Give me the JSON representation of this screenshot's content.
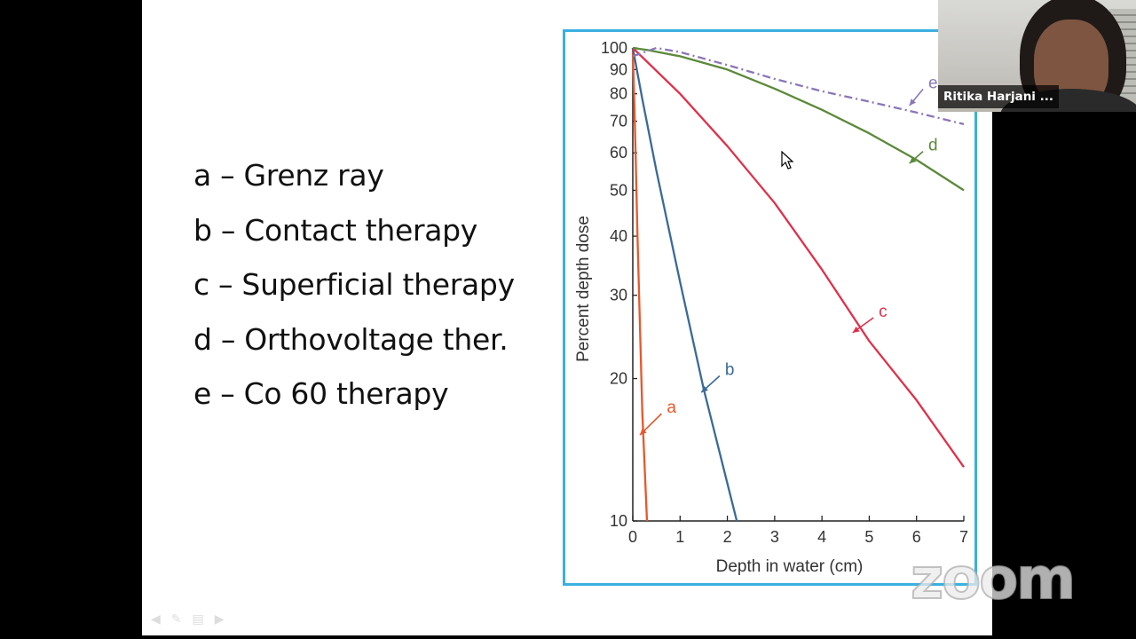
{
  "slide": {
    "legend": [
      "a – Grenz ray",
      "b – Contact therapy",
      "c – Superficial therapy",
      "d – Orthovoltage ther.",
      "e – Co 60 therapy"
    ]
  },
  "chart_data": {
    "type": "line",
    "title": "",
    "xlabel": "Depth in water (cm)",
    "ylabel": "Percent depth dose",
    "xlim": [
      0,
      7
    ],
    "ylim": [
      10,
      100
    ],
    "yscale": "log",
    "xticks": [
      0,
      1,
      2,
      3,
      4,
      5,
      6,
      7
    ],
    "yticks": [
      10,
      20,
      30,
      40,
      50,
      60,
      70,
      80,
      90,
      100
    ],
    "series": [
      {
        "name": "a",
        "color": "#e8572a",
        "style": "solid",
        "x": [
          0,
          0.05,
          0.1,
          0.2,
          0.3
        ],
        "y": [
          100,
          65,
          40,
          17,
          10
        ]
      },
      {
        "name": "b",
        "color": "#3a6a98",
        "style": "solid",
        "x": [
          0,
          0.2,
          0.5,
          1.0,
          1.5,
          2.0,
          2.2
        ],
        "y": [
          100,
          78,
          55,
          32,
          19,
          12,
          10
        ]
      },
      {
        "name": "c",
        "color": "#e0304a",
        "style": "solid",
        "x": [
          0,
          1,
          2,
          3,
          4,
          5,
          6,
          7
        ],
        "y": [
          100,
          80,
          62,
          47,
          34,
          24,
          18,
          13
        ]
      },
      {
        "name": "d",
        "color": "#5b8a3a",
        "style": "solid",
        "x": [
          0,
          0.3,
          1,
          2,
          3,
          4,
          5,
          6,
          7
        ],
        "y": [
          100,
          99,
          96,
          90,
          82,
          74,
          66,
          58,
          50
        ]
      },
      {
        "name": "e",
        "color": "#8a76b8",
        "style": "dashdot",
        "x": [
          0,
          0.5,
          1,
          2,
          3,
          4,
          5,
          6,
          7
        ],
        "y": [
          96,
          100,
          98,
          92,
          86,
          81,
          77,
          73,
          69
        ]
      }
    ],
    "annotations": [
      "a",
      "b",
      "c",
      "d",
      "e"
    ]
  },
  "zoom": {
    "participant_name": "Ritika Harjani ...",
    "watermark": "zoom"
  }
}
